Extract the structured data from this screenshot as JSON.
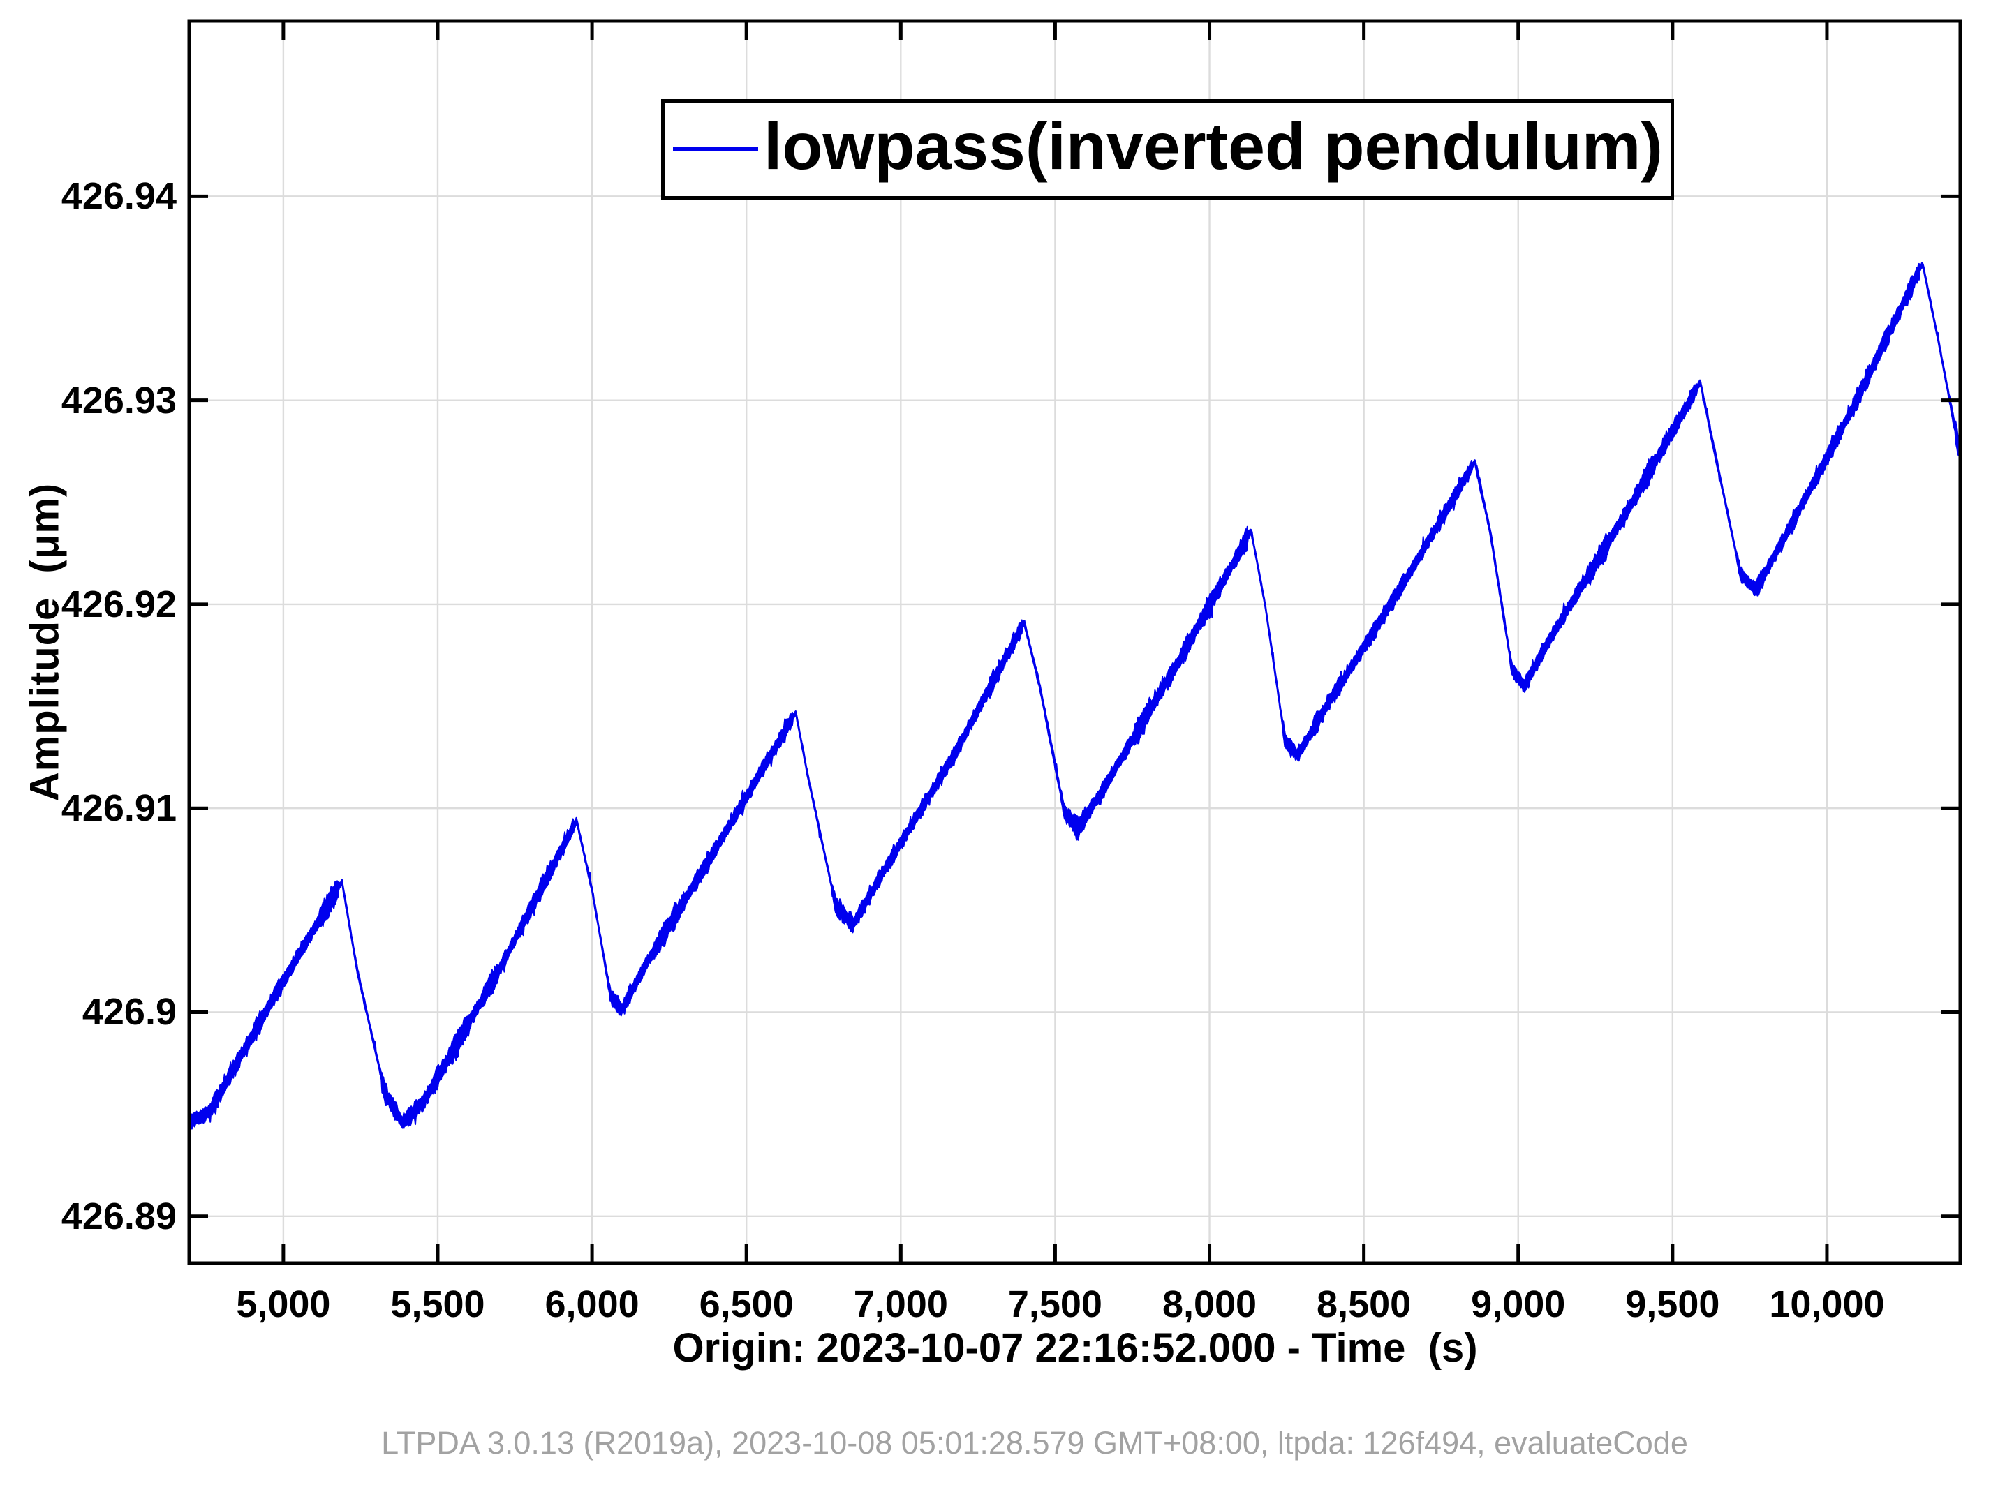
{
  "figure": {
    "footer": "LTPDA 3.0.13 (R2019a), 2023-10-08 05:01:28.579 GMT+08:00, ltpda: 126f494, evaluateCode"
  },
  "chart_data": {
    "type": "line",
    "title": "",
    "xlabel": "Origin: 2023-10-07 22:16:52.000 - Time  (s)",
    "ylabel": "Amplitude  (μm)",
    "x_range": [
      4695,
      10432
    ],
    "y_range": [
      426.8877,
      426.9486
    ],
    "x_ticks": [
      5000,
      5500,
      6000,
      6500,
      7000,
      7500,
      8000,
      8500,
      9000,
      9500,
      10000
    ],
    "x_tick_labels": [
      "5,000",
      "5,500",
      "6,000",
      "6,500",
      "7,000",
      "7,500",
      "8,000",
      "8,500",
      "9,000",
      "9,500",
      "10,000"
    ],
    "y_ticks": [
      426.89,
      426.9,
      426.91,
      426.92,
      426.93,
      426.94
    ],
    "y_tick_labels": [
      "426.89",
      "426.9",
      "426.91",
      "426.92",
      "426.93",
      "426.94"
    ],
    "grid": true,
    "grid_color": "#dcdcdc",
    "axis_color": "#000000",
    "legend_position": "top-center",
    "series": [
      {
        "name": "lowpass(inverted pendulum)",
        "color": "#0000ee",
        "description": "noisy rising sawtooth, ~690 s tooth period, drift +0.005 um per cycle",
        "keypoints": [
          [
            4695,
            426.8946
          ],
          [
            4760,
            426.8951
          ],
          [
            4980,
            426.901
          ],
          [
            5190,
            426.9064
          ],
          [
            5240,
            426.902
          ],
          [
            5330,
            426.896
          ],
          [
            5385,
            426.8946
          ],
          [
            5450,
            426.8955
          ],
          [
            5700,
            426.9021
          ],
          [
            5950,
            426.9094
          ],
          [
            6000,
            426.906
          ],
          [
            6060,
            426.9008
          ],
          [
            6095,
            426.9001
          ],
          [
            6180,
            426.9025
          ],
          [
            6420,
            426.9085
          ],
          [
            6660,
            426.9147
          ],
          [
            6700,
            426.9115
          ],
          [
            6790,
            426.9052
          ],
          [
            6845,
            426.9043
          ],
          [
            6940,
            426.9068
          ],
          [
            7180,
            426.9128
          ],
          [
            7400,
            426.9191
          ],
          [
            7450,
            426.916
          ],
          [
            7530,
            426.9098
          ],
          [
            7575,
            426.909
          ],
          [
            7670,
            426.9113
          ],
          [
            7900,
            426.9172
          ],
          [
            8135,
            426.9236
          ],
          [
            8180,
            426.92
          ],
          [
            8245,
            426.9133
          ],
          [
            8285,
            426.9126
          ],
          [
            8380,
            426.915
          ],
          [
            8620,
            426.9208
          ],
          [
            8860,
            426.927
          ],
          [
            8910,
            426.9235
          ],
          [
            8980,
            426.9168
          ],
          [
            9020,
            426.916
          ],
          [
            9110,
            426.9185
          ],
          [
            9350,
            426.9245
          ],
          [
            9590,
            426.9309
          ],
          [
            9640,
            426.9272
          ],
          [
            9720,
            426.9215
          ],
          [
            9770,
            426.9207
          ],
          [
            9860,
            426.9232
          ],
          [
            10080,
            426.9295
          ],
          [
            10310,
            426.9367
          ],
          [
            10360,
            426.933
          ],
          [
            10432,
            426.9273
          ]
        ]
      }
    ],
    "noise": {
      "seed": 97531,
      "step_s": 2.2,
      "base_halfwidth": 0.00022,
      "burst_gain": 0.0012,
      "max_halfwidth": 0.00062,
      "descent_slope": -4e-05,
      "descent_factor": 0.38,
      "whisker": 0.00022,
      "whisker_prob": 0.012
    }
  }
}
